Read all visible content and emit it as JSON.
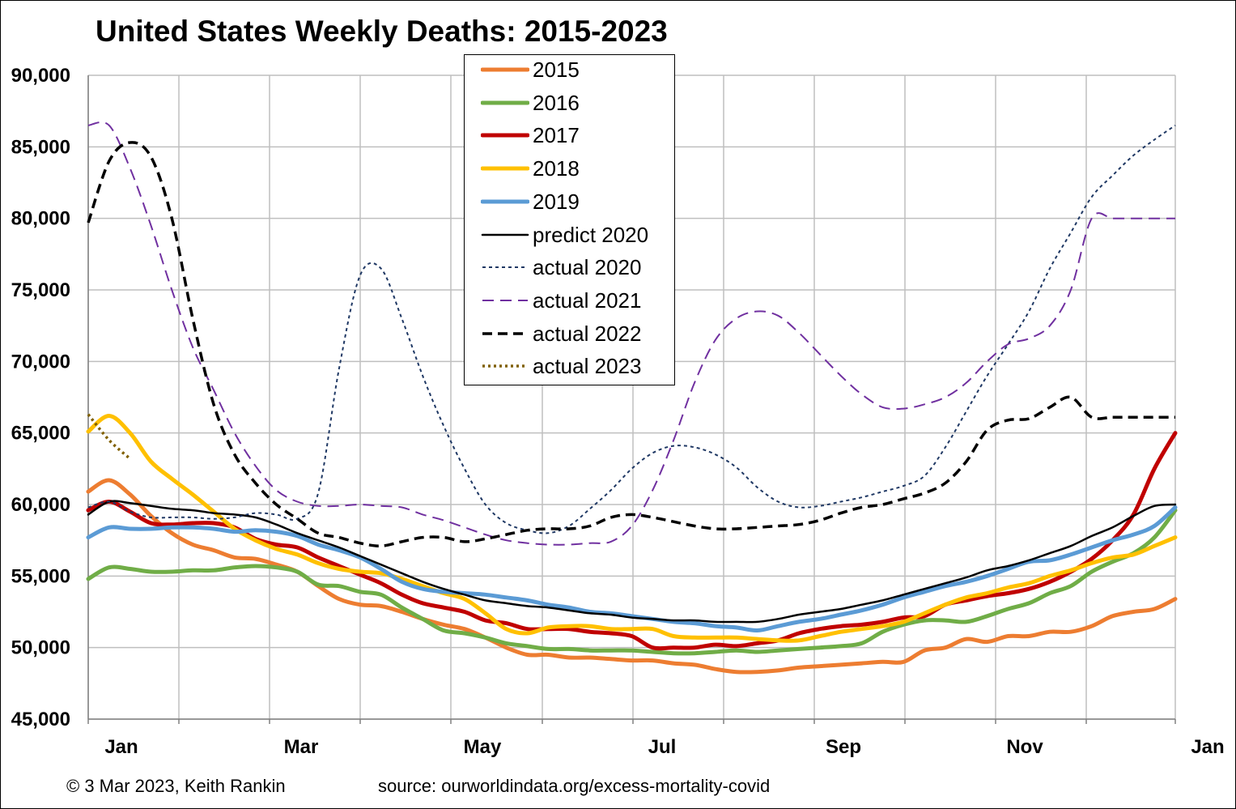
{
  "title": "United States Weekly Deaths: 2015-2023",
  "footer": {
    "copyright": "© 3 Mar 2023, Keith Rankin",
    "source": "source: ourworldindata.org/excess-mortality-covid"
  },
  "chart_data": {
    "type": "line",
    "title": "United States Weekly Deaths: 2015-2023",
    "xlabel": "",
    "ylabel": "",
    "ylim": [
      45000,
      90000
    ],
    "yticks": [
      45000,
      50000,
      55000,
      60000,
      65000,
      70000,
      75000,
      80000,
      85000,
      90000
    ],
    "ytick_labels": [
      "45,000",
      "50,000",
      "55,000",
      "60,000",
      "65,000",
      "70,000",
      "75,000",
      "80,000",
      "85,000",
      "90,000"
    ],
    "xlim": [
      1,
      53
    ],
    "x_unit": "week of year",
    "xtick_labels": [
      "Jan",
      "Mar",
      "May",
      "Jul",
      "Sep",
      "Nov",
      "Jan"
    ],
    "grid": true,
    "legend_position": "top-center",
    "series": [
      {
        "name": "2015",
        "color": "#ed7d31",
        "style": "solid-thick",
        "x": [
          1,
          2,
          3,
          4,
          5,
          6,
          7,
          8,
          9,
          10,
          11,
          12,
          13,
          14,
          15,
          16,
          17,
          18,
          19,
          20,
          21,
          22,
          23,
          24,
          25,
          26,
          27,
          28,
          29,
          30,
          31,
          32,
          33,
          34,
          35,
          36,
          37,
          38,
          39,
          40,
          41,
          42,
          43,
          44,
          45,
          46,
          47,
          48,
          49,
          50,
          51,
          52,
          53
        ],
        "values": [
          60900,
          61700,
          60700,
          59200,
          58000,
          57200,
          56800,
          56300,
          56200,
          55800,
          55300,
          54300,
          53400,
          53000,
          52900,
          52500,
          52000,
          51600,
          51300,
          50700,
          50000,
          49500,
          49500,
          49300,
          49300,
          49200,
          49100,
          49100,
          48900,
          48800,
          48500,
          48300,
          48300,
          48400,
          48600,
          48700,
          48800,
          48900,
          49000,
          49000,
          49800,
          50000,
          50600,
          50400,
          50800,
          50800,
          51100,
          51100,
          51500,
          52200,
          52500,
          52700,
          53400
        ]
      },
      {
        "name": "2016",
        "color": "#70ad47",
        "style": "solid-thick",
        "x": [
          1,
          2,
          3,
          4,
          5,
          6,
          7,
          8,
          9,
          10,
          11,
          12,
          13,
          14,
          15,
          16,
          17,
          18,
          19,
          20,
          21,
          22,
          23,
          24,
          25,
          26,
          27,
          28,
          29,
          30,
          31,
          32,
          33,
          34,
          35,
          36,
          37,
          38,
          39,
          40,
          41,
          42,
          43,
          44,
          45,
          46,
          47,
          48,
          49,
          50,
          51,
          52,
          53
        ],
        "values": [
          54800,
          55600,
          55500,
          55300,
          55300,
          55400,
          55400,
          55600,
          55700,
          55600,
          55300,
          54400,
          54300,
          53900,
          53700,
          52800,
          52000,
          51200,
          51000,
          50700,
          50300,
          50100,
          49900,
          49900,
          49800,
          49800,
          49800,
          49700,
          49600,
          49600,
          49700,
          49800,
          49700,
          49800,
          49900,
          50000,
          50100,
          50300,
          51100,
          51600,
          51900,
          51900,
          51800,
          52200,
          52700,
          53100,
          53800,
          54300,
          55300,
          56000,
          56600,
          57700,
          59600
        ]
      },
      {
        "name": "2017",
        "color": "#c00000",
        "style": "solid-thick",
        "x": [
          1,
          2,
          3,
          4,
          5,
          6,
          7,
          8,
          9,
          10,
          11,
          12,
          13,
          14,
          15,
          16,
          17,
          18,
          19,
          20,
          21,
          22,
          23,
          24,
          25,
          26,
          27,
          28,
          29,
          30,
          31,
          32,
          33,
          34,
          35,
          36,
          37,
          38,
          39,
          40,
          41,
          42,
          43,
          44,
          45,
          46,
          47,
          48,
          49,
          50,
          51,
          52,
          53
        ],
        "values": [
          59600,
          60200,
          59500,
          58700,
          58600,
          58700,
          58700,
          58400,
          57600,
          57200,
          57000,
          56300,
          55700,
          55100,
          54500,
          53700,
          53100,
          52800,
          52500,
          51900,
          51700,
          51300,
          51300,
          51300,
          51100,
          51000,
          50800,
          50000,
          50000,
          50000,
          50200,
          50100,
          50300,
          50500,
          51000,
          51300,
          51500,
          51600,
          51800,
          52100,
          52200,
          53000,
          53300,
          53600,
          53800,
          54100,
          54600,
          55300,
          56200,
          57500,
          59300,
          62500,
          65000
        ]
      },
      {
        "name": "2018",
        "color": "#ffc000",
        "style": "solid-thick",
        "x": [
          1,
          2,
          3,
          4,
          5,
          6,
          7,
          8,
          9,
          10,
          11,
          12,
          13,
          14,
          15,
          16,
          17,
          18,
          19,
          20,
          21,
          22,
          23,
          24,
          25,
          26,
          27,
          28,
          29,
          30,
          31,
          32,
          33,
          34,
          35,
          36,
          37,
          38,
          39,
          40,
          41,
          42,
          43,
          44,
          45,
          46,
          47,
          48,
          49,
          50,
          51,
          52,
          53
        ],
        "values": [
          65100,
          66200,
          65000,
          63000,
          61800,
          60700,
          59500,
          58300,
          57500,
          56900,
          56500,
          55900,
          55500,
          55300,
          55200,
          54800,
          54300,
          53800,
          53400,
          52400,
          51300,
          51000,
          51400,
          51500,
          51500,
          51300,
          51300,
          51300,
          50800,
          50700,
          50700,
          50700,
          50600,
          50500,
          50500,
          50800,
          51100,
          51300,
          51500,
          51800,
          52400,
          53000,
          53500,
          53800,
          54200,
          54500,
          55000,
          55400,
          55900,
          56300,
          56500,
          57100,
          57700
        ]
      },
      {
        "name": "2019",
        "color": "#5b9bd5",
        "style": "solid-thick",
        "x": [
          1,
          2,
          3,
          4,
          5,
          6,
          7,
          8,
          9,
          10,
          11,
          12,
          13,
          14,
          15,
          16,
          17,
          18,
          19,
          20,
          21,
          22,
          23,
          24,
          25,
          26,
          27,
          28,
          29,
          30,
          31,
          32,
          33,
          34,
          35,
          36,
          37,
          38,
          39,
          40,
          41,
          42,
          43,
          44,
          45,
          46,
          47,
          48,
          49,
          50,
          51,
          52,
          53
        ],
        "values": [
          57700,
          58400,
          58300,
          58300,
          58400,
          58400,
          58300,
          58100,
          58200,
          58100,
          57800,
          57200,
          56800,
          56300,
          55500,
          54600,
          54100,
          53900,
          53800,
          53700,
          53500,
          53300,
          53000,
          52800,
          52500,
          52400,
          52200,
          52000,
          51800,
          51700,
          51500,
          51400,
          51200,
          51500,
          51800,
          52000,
          52300,
          52600,
          53000,
          53500,
          53900,
          54300,
          54600,
          55000,
          55500,
          56000,
          56100,
          56500,
          57000,
          57500,
          57900,
          58500,
          59800
        ]
      },
      {
        "name": "predict 2020",
        "color": "#000000",
        "style": "solid-thin",
        "x": [
          1,
          2,
          3,
          4,
          5,
          6,
          7,
          8,
          9,
          10,
          11,
          12,
          13,
          14,
          15,
          16,
          17,
          18,
          19,
          20,
          21,
          22,
          23,
          24,
          25,
          26,
          27,
          28,
          29,
          30,
          31,
          32,
          33,
          34,
          35,
          36,
          37,
          38,
          39,
          40,
          41,
          42,
          43,
          44,
          45,
          46,
          47,
          48,
          49,
          50,
          51,
          52,
          53
        ],
        "values": [
          59300,
          60200,
          60100,
          59900,
          59700,
          59600,
          59400,
          59300,
          59100,
          58600,
          58000,
          57500,
          57000,
          56400,
          55800,
          55200,
          54600,
          54100,
          53700,
          53300,
          53100,
          52900,
          52800,
          52600,
          52400,
          52300,
          52100,
          52000,
          51900,
          51900,
          51800,
          51800,
          51800,
          52000,
          52300,
          52500,
          52700,
          53000,
          53300,
          53700,
          54100,
          54500,
          54900,
          55400,
          55700,
          56100,
          56600,
          57100,
          57800,
          58400,
          59200,
          59900,
          60000
        ]
      },
      {
        "name": "actual 2020",
        "color": "#1f3864",
        "style": "dotted",
        "x": [
          1,
          2,
          3,
          4,
          5,
          6,
          7,
          8,
          9,
          10,
          11,
          12,
          13,
          14,
          15,
          16,
          17,
          18,
          19,
          20,
          21,
          22,
          23,
          24,
          25,
          26,
          27,
          28,
          29,
          30,
          31,
          32,
          33,
          34,
          35,
          36,
          37,
          38,
          39,
          40,
          41,
          42,
          43,
          44,
          45,
          46,
          47,
          48,
          49,
          50,
          51,
          52,
          53
        ],
        "values": [
          59800,
          60200,
          59500,
          59100,
          59100,
          59100,
          59000,
          59100,
          59400,
          59300,
          59000,
          60800,
          69500,
          76000,
          76500,
          73000,
          69000,
          65500,
          62500,
          60000,
          58700,
          58200,
          58000,
          58500,
          59700,
          61000,
          62500,
          63600,
          64100,
          64000,
          63500,
          62600,
          61200,
          60200,
          59800,
          59900,
          60200,
          60500,
          60900,
          61300,
          62000,
          64000,
          66500,
          69000,
          71200,
          73500,
          76500,
          79000,
          81500,
          83000,
          84400,
          85500,
          86500
        ]
      },
      {
        "name": "actual 2021",
        "color": "#7030a0",
        "style": "dashed",
        "x": [
          1,
          2,
          3,
          4,
          5,
          6,
          7,
          8,
          9,
          10,
          11,
          12,
          13,
          14,
          15,
          16,
          17,
          18,
          19,
          20,
          21,
          22,
          23,
          24,
          25,
          26,
          27,
          28,
          29,
          30,
          31,
          32,
          33,
          34,
          35,
          36,
          37,
          38,
          39,
          40,
          41,
          42,
          43,
          44,
          45,
          46,
          47,
          48,
          49,
          50,
          51,
          52,
          53
        ],
        "values": [
          86500,
          86500,
          83500,
          79500,
          75000,
          71000,
          68000,
          65000,
          62700,
          61000,
          60200,
          59900,
          59900,
          60000,
          59900,
          59800,
          59300,
          58900,
          58400,
          57900,
          57500,
          57300,
          57200,
          57200,
          57300,
          57400,
          58500,
          61000,
          64500,
          68500,
          71500,
          73000,
          73500,
          73200,
          72000,
          70500,
          69000,
          67700,
          66800,
          66700,
          67000,
          67500,
          68500,
          70000,
          71200,
          71600,
          72500,
          75000,
          80000,
          80000,
          80000,
          80000,
          80000
        ]
      },
      {
        "name": "actual 2022",
        "color": "#000000",
        "style": "dashed-thick",
        "x": [
          1,
          2,
          3,
          4,
          5,
          6,
          7,
          8,
          9,
          10,
          11,
          12,
          13,
          14,
          15,
          16,
          17,
          18,
          19,
          20,
          21,
          22,
          23,
          24,
          25,
          26,
          27,
          28,
          29,
          30,
          31,
          32,
          33,
          34,
          35,
          36,
          37,
          38,
          39,
          40,
          41,
          42,
          43,
          44,
          45,
          46,
          47,
          48,
          49,
          50,
          51,
          52,
          53
        ],
        "values": [
          79700,
          84000,
          85300,
          84300,
          80000,
          73000,
          67000,
          63500,
          61500,
          60000,
          59000,
          58000,
          57700,
          57300,
          57100,
          57400,
          57700,
          57700,
          57400,
          57600,
          57900,
          58200,
          58300,
          58300,
          58500,
          59100,
          59300,
          59100,
          58800,
          58500,
          58300,
          58300,
          58400,
          58500,
          58600,
          58900,
          59400,
          59800,
          60000,
          60400,
          60800,
          61500,
          63000,
          65200,
          65900,
          66000,
          66800,
          67500,
          66100,
          66100,
          66100,
          66100,
          66100
        ]
      },
      {
        "name": "actual 2023",
        "color": "#806000",
        "style": "dotted-thick",
        "x": [
          1,
          2,
          3
        ],
        "values": [
          66300,
          64500,
          63200
        ]
      }
    ]
  }
}
